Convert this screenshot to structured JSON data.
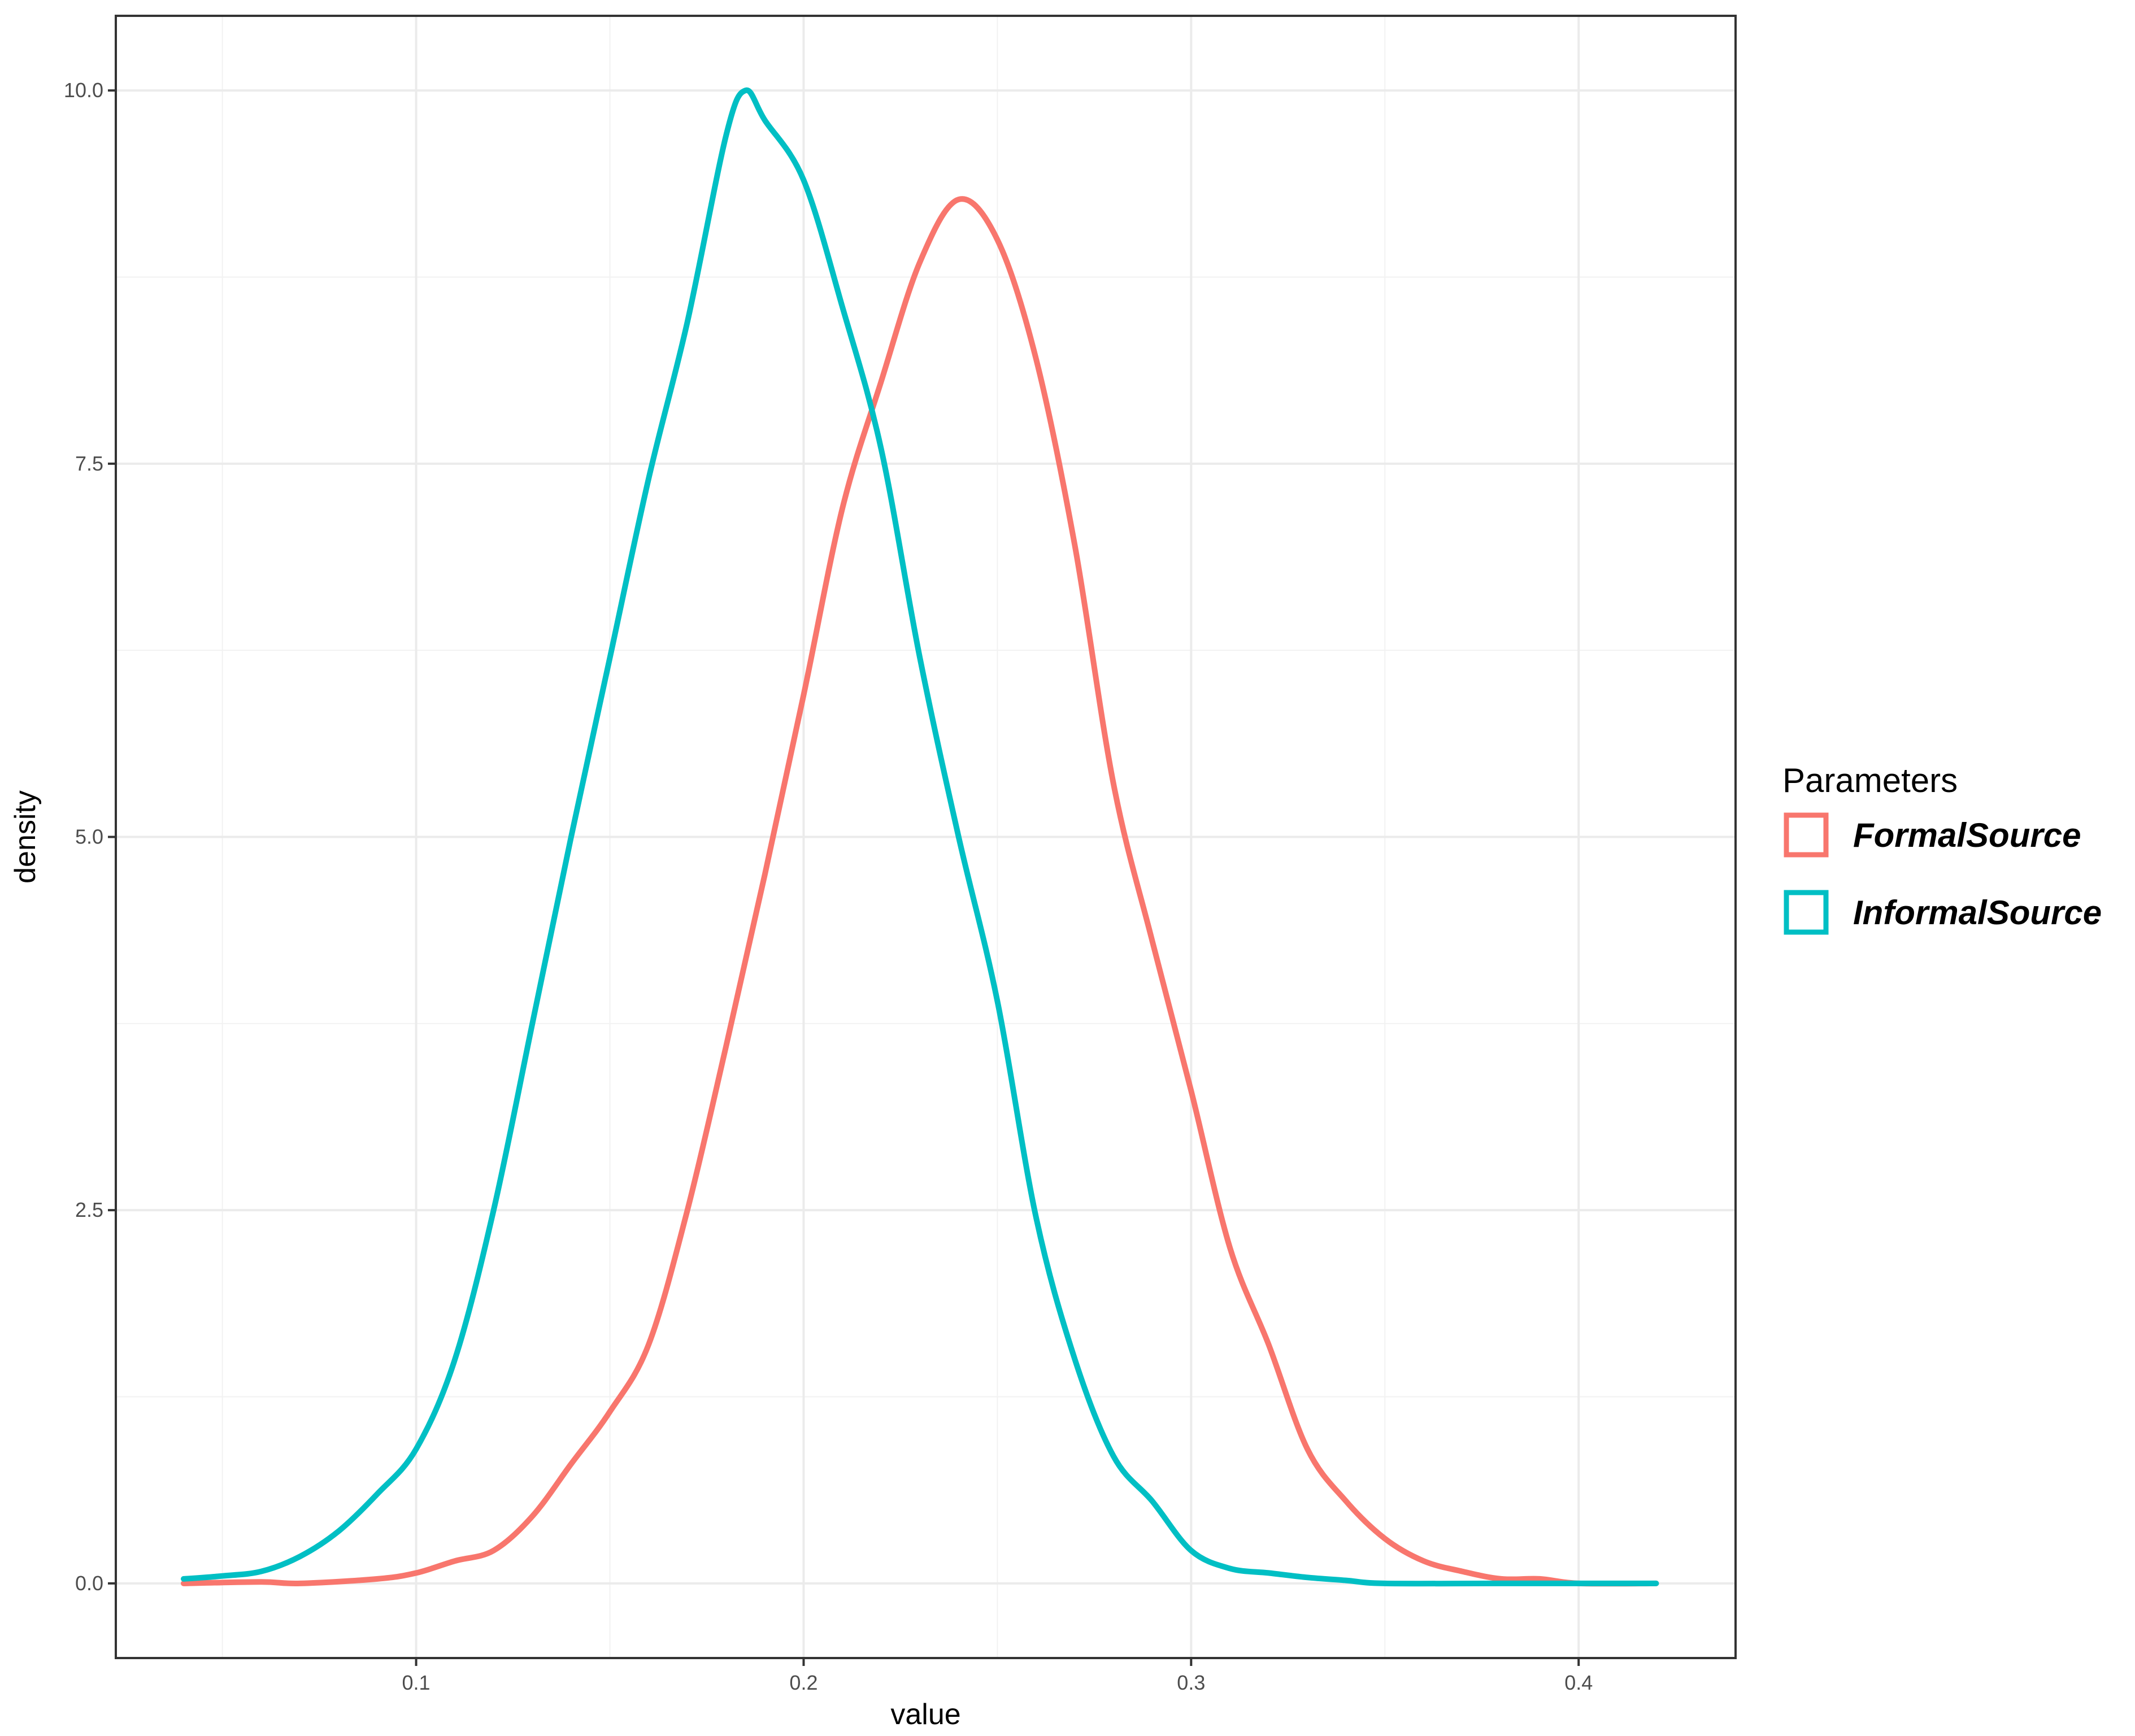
{
  "chart_data": {
    "type": "line",
    "title": "",
    "xlabel": "value",
    "ylabel": "density",
    "xlim": [
      0.0225,
      0.4405
    ],
    "ylim": [
      -0.5,
      10.5
    ],
    "x_ticks": [
      0.1,
      0.2,
      0.3,
      0.4
    ],
    "x_tick_labels": [
      "0.1",
      "0.2",
      "0.3",
      "0.4"
    ],
    "y_ticks": [
      0,
      2.5,
      5,
      7.5,
      10
    ],
    "y_tick_labels": [
      "0.0",
      "2.5",
      "5.0",
      "7.5",
      "10.0"
    ],
    "grid": true,
    "legend": {
      "title": "Parameters",
      "placement": "right"
    },
    "series": [
      {
        "name": "FormalSource",
        "color": "#F8766D",
        "points": [
          [
            0.04,
            0.0
          ],
          [
            0.06,
            0.01
          ],
          [
            0.07,
            0.0
          ],
          [
            0.09,
            0.03
          ],
          [
            0.1,
            0.07
          ],
          [
            0.11,
            0.15
          ],
          [
            0.12,
            0.22
          ],
          [
            0.13,
            0.45
          ],
          [
            0.14,
            0.8
          ],
          [
            0.15,
            1.15
          ],
          [
            0.16,
            1.6
          ],
          [
            0.17,
            2.5
          ],
          [
            0.18,
            3.6
          ],
          [
            0.19,
            4.75
          ],
          [
            0.2,
            5.95
          ],
          [
            0.21,
            7.2
          ],
          [
            0.22,
            8.05
          ],
          [
            0.23,
            8.85
          ],
          [
            0.24,
            9.27
          ],
          [
            0.25,
            9.0
          ],
          [
            0.26,
            8.2
          ],
          [
            0.27,
            6.95
          ],
          [
            0.28,
            5.35
          ],
          [
            0.29,
            4.3
          ],
          [
            0.3,
            3.3
          ],
          [
            0.31,
            2.25
          ],
          [
            0.32,
            1.6
          ],
          [
            0.33,
            0.9
          ],
          [
            0.34,
            0.55
          ],
          [
            0.35,
            0.3
          ],
          [
            0.36,
            0.15
          ],
          [
            0.37,
            0.08
          ],
          [
            0.38,
            0.03
          ],
          [
            0.39,
            0.03
          ],
          [
            0.4,
            0.0
          ],
          [
            0.42,
            0.0
          ]
        ]
      },
      {
        "name": "InformalSource",
        "color": "#00BFC4",
        "points": [
          [
            0.04,
            0.03
          ],
          [
            0.05,
            0.05
          ],
          [
            0.06,
            0.08
          ],
          [
            0.07,
            0.18
          ],
          [
            0.08,
            0.35
          ],
          [
            0.09,
            0.6
          ],
          [
            0.1,
            0.9
          ],
          [
            0.11,
            1.5
          ],
          [
            0.12,
            2.5
          ],
          [
            0.13,
            3.75
          ],
          [
            0.14,
            5.0
          ],
          [
            0.15,
            6.2
          ],
          [
            0.16,
            7.4
          ],
          [
            0.17,
            8.45
          ],
          [
            0.18,
            9.7
          ],
          [
            0.185,
            10.0
          ],
          [
            0.19,
            9.8
          ],
          [
            0.2,
            9.4
          ],
          [
            0.21,
            8.55
          ],
          [
            0.22,
            7.6
          ],
          [
            0.23,
            6.2
          ],
          [
            0.24,
            5.0
          ],
          [
            0.25,
            3.9
          ],
          [
            0.26,
            2.45
          ],
          [
            0.27,
            1.5
          ],
          [
            0.28,
            0.85
          ],
          [
            0.29,
            0.55
          ],
          [
            0.3,
            0.22
          ],
          [
            0.31,
            0.1
          ],
          [
            0.32,
            0.07
          ],
          [
            0.33,
            0.04
          ],
          [
            0.34,
            0.02
          ],
          [
            0.35,
            0.0
          ],
          [
            0.38,
            0.0
          ],
          [
            0.42,
            0.0
          ]
        ]
      }
    ]
  }
}
